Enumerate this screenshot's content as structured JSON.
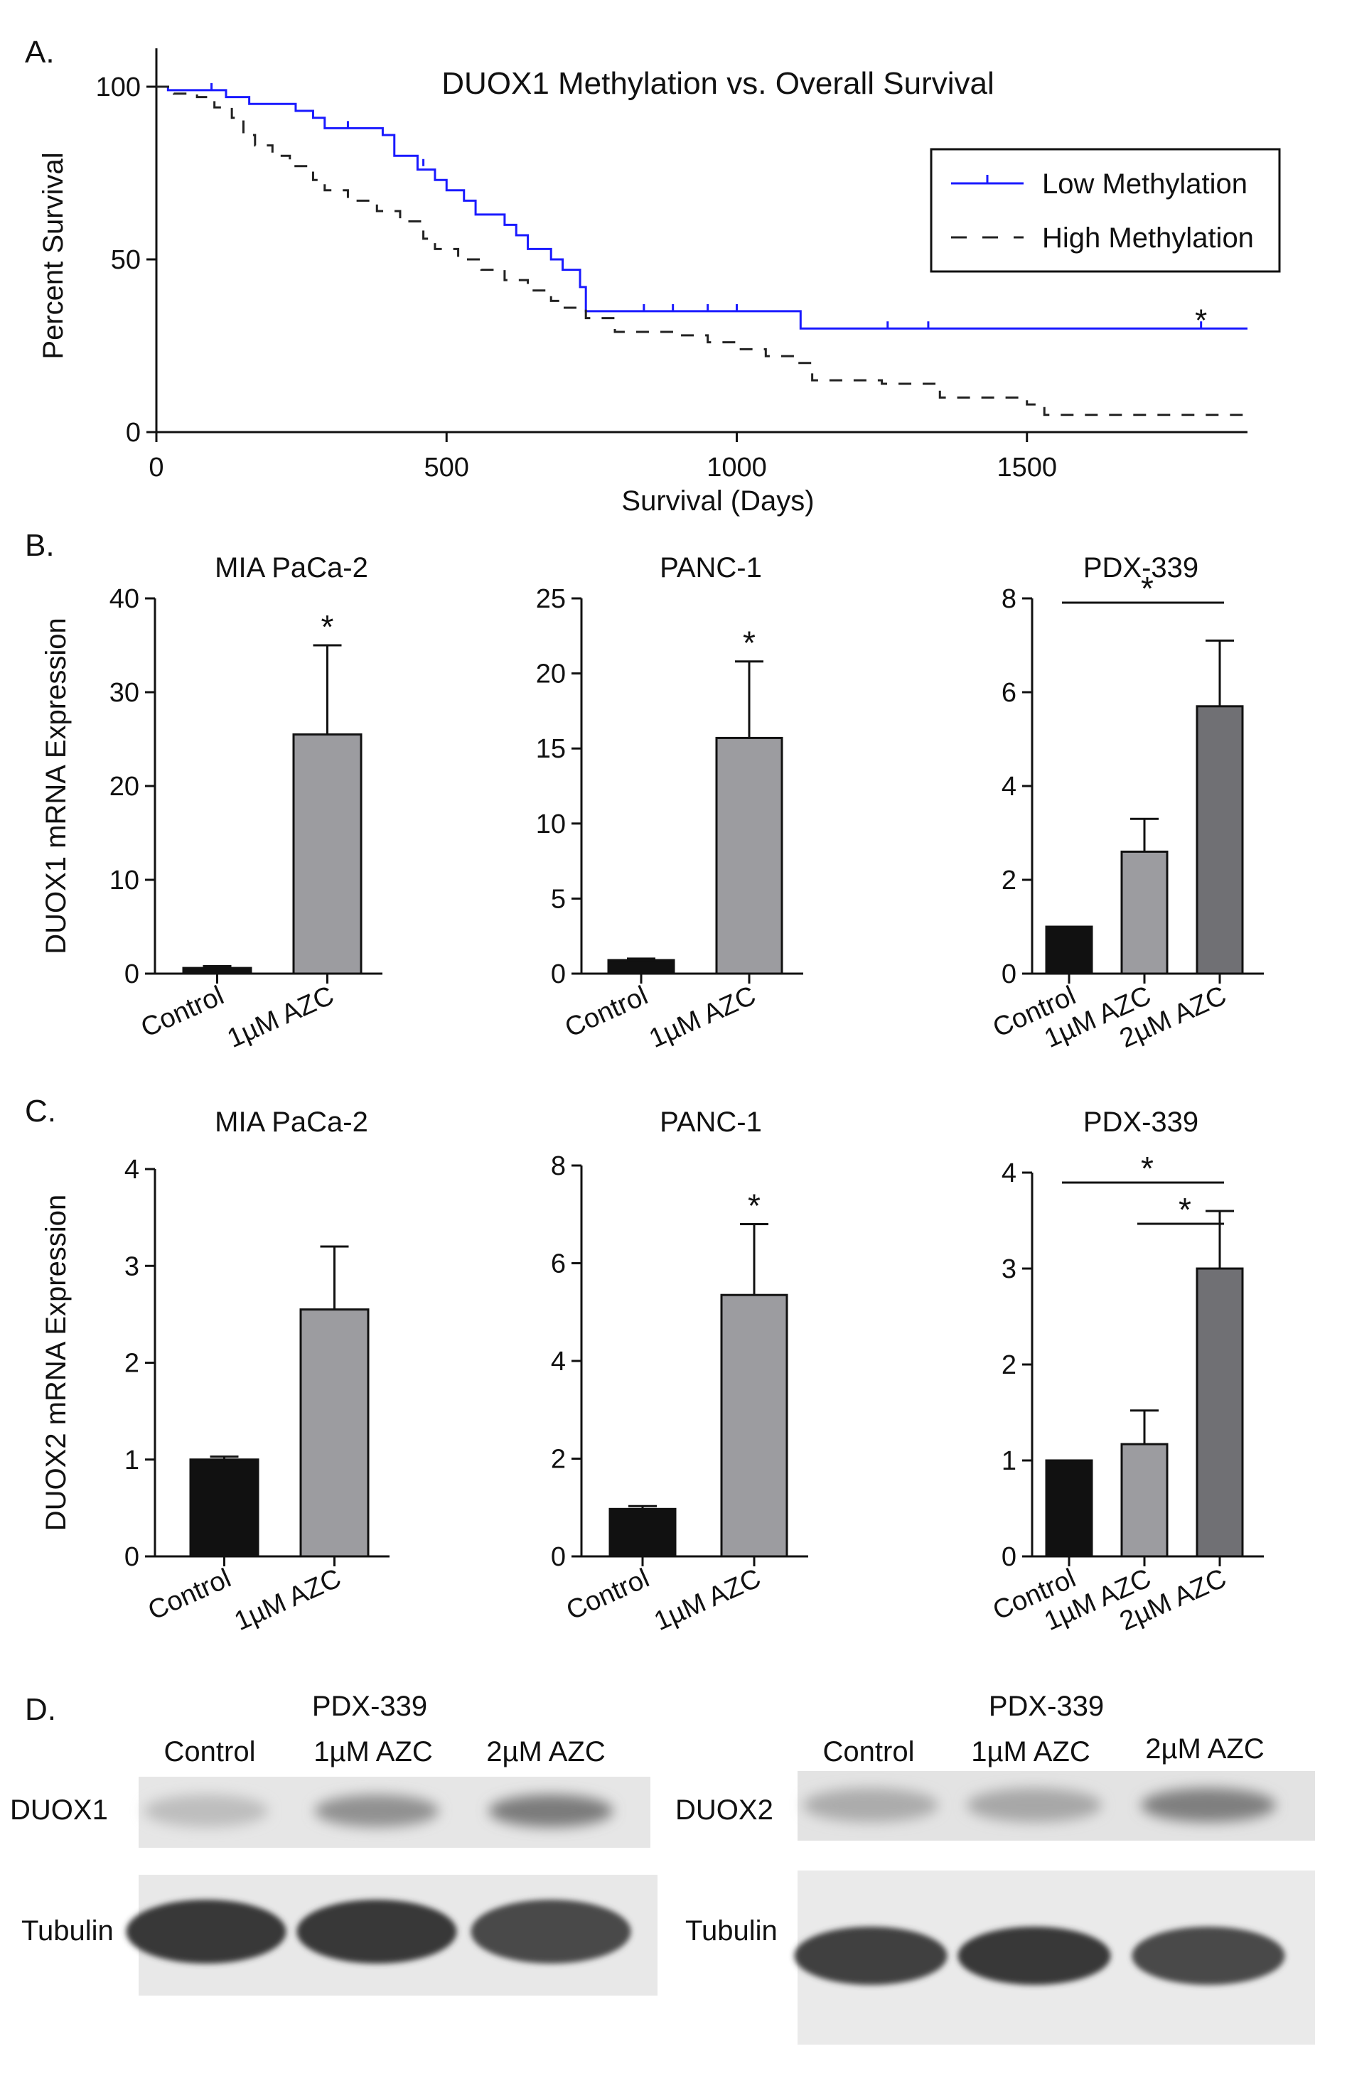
{
  "panels": {
    "A": {
      "letter": "A."
    },
    "B": {
      "letter": "B."
    },
    "C": {
      "letter": "C."
    },
    "D": {
      "letter": "D."
    }
  },
  "chart_data": [
    {
      "id": "A",
      "type": "line",
      "subtype": "kaplan-meier",
      "title": "DUOX1 Methylation vs. Overall Survival",
      "xlabel": "Survival (Days)",
      "ylabel": "Percent Survival",
      "xlim": [
        0,
        1880
      ],
      "ylim": [
        0,
        100
      ],
      "xticks": [
        0,
        500,
        1000,
        1500
      ],
      "yticks": [
        0,
        50,
        100
      ],
      "legend": {
        "position": "top-right",
        "entries": [
          "Low Methylation",
          "High Methylation"
        ]
      },
      "annotations": [
        {
          "text": "*",
          "x": 1800,
          "y": 33
        }
      ],
      "series": [
        {
          "name": "Low Methylation",
          "color": "#1a1aff",
          "style": "solid",
          "points": [
            [
              0,
              100
            ],
            [
              20,
              99
            ],
            [
              110,
              99
            ],
            [
              120,
              97
            ],
            [
              160,
              95
            ],
            [
              240,
              93
            ],
            [
              270,
              91
            ],
            [
              290,
              88
            ],
            [
              380,
              88
            ],
            [
              390,
              86
            ],
            [
              410,
              80
            ],
            [
              450,
              76
            ],
            [
              480,
              73
            ],
            [
              500,
              70
            ],
            [
              530,
              67
            ],
            [
              550,
              63
            ],
            [
              600,
              60
            ],
            [
              620,
              57
            ],
            [
              640,
              53
            ],
            [
              680,
              50
            ],
            [
              700,
              47
            ],
            [
              730,
              42
            ],
            [
              740,
              35
            ],
            [
              1100,
              35
            ],
            [
              1110,
              30
            ],
            [
              1880,
              30
            ]
          ],
          "censored": [
            [
              95,
              99
            ],
            [
              330,
              88
            ],
            [
              460,
              77
            ],
            [
              840,
              35
            ],
            [
              890,
              35
            ],
            [
              950,
              35
            ],
            [
              1000,
              35
            ],
            [
              1260,
              30
            ],
            [
              1330,
              30
            ],
            [
              1800,
              30
            ]
          ]
        },
        {
          "name": "High Methylation",
          "color": "#222222",
          "style": "dashed",
          "points": [
            [
              0,
              100
            ],
            [
              30,
              98
            ],
            [
              70,
              97
            ],
            [
              100,
              94
            ],
            [
              130,
              91
            ],
            [
              150,
              86
            ],
            [
              170,
              83
            ],
            [
              200,
              80
            ],
            [
              230,
              77
            ],
            [
              270,
              73
            ],
            [
              290,
              70
            ],
            [
              330,
              67
            ],
            [
              380,
              64
            ],
            [
              420,
              61
            ],
            [
              460,
              56
            ],
            [
              480,
              53
            ],
            [
              520,
              50
            ],
            [
              560,
              47
            ],
            [
              600,
              44
            ],
            [
              640,
              41
            ],
            [
              680,
              38
            ],
            [
              700,
              36
            ],
            [
              740,
              33
            ],
            [
              790,
              29
            ],
            [
              900,
              28
            ],
            [
              950,
              26
            ],
            [
              1000,
              24
            ],
            [
              1050,
              22
            ],
            [
              1100,
              20
            ],
            [
              1130,
              15
            ],
            [
              1250,
              14
            ],
            [
              1350,
              10
            ],
            [
              1500,
              8
            ],
            [
              1530,
              5
            ],
            [
              1880,
              5
            ]
          ],
          "censored": []
        }
      ]
    },
    {
      "id": "B1",
      "type": "bar",
      "title": "MIA PaCa-2",
      "ylabel": "DUOX1 mRNA Expression",
      "categories": [
        "Control",
        "1µM AZC"
      ],
      "values": [
        0.6,
        25.5
      ],
      "errors": [
        0.2,
        9.5
      ],
      "colors": [
        "#111111",
        "#9c9ca0"
      ],
      "ylim": [
        0,
        40
      ],
      "yticks": [
        0,
        10,
        20,
        30,
        40
      ],
      "significance": [
        {
          "label": "*",
          "target": 1
        }
      ]
    },
    {
      "id": "B2",
      "type": "bar",
      "title": "PANC-1",
      "ylabel": "",
      "categories": [
        "Control",
        "1µM AZC"
      ],
      "values": [
        0.9,
        15.7
      ],
      "errors": [
        0.1,
        5.1
      ],
      "colors": [
        "#111111",
        "#9c9ca0"
      ],
      "ylim": [
        0,
        25
      ],
      "yticks": [
        0,
        5,
        10,
        15,
        20,
        25
      ],
      "significance": [
        {
          "label": "*",
          "target": 1
        }
      ]
    },
    {
      "id": "B3",
      "type": "bar",
      "title": "PDX-339",
      "ylabel": "",
      "categories": [
        "Control",
        "1µM AZC",
        "2µM AZC"
      ],
      "values": [
        1.0,
        2.6,
        5.7
      ],
      "errors": [
        0.0,
        0.7,
        1.4
      ],
      "colors": [
        "#111111",
        "#9c9ca0",
        "#707074"
      ],
      "ylim": [
        0,
        8
      ],
      "yticks": [
        0,
        2,
        4,
        6,
        8
      ],
      "significance": [
        {
          "label": "*",
          "from": 0,
          "to": 2
        }
      ]
    },
    {
      "id": "C1",
      "type": "bar",
      "title": "MIA PaCa-2",
      "ylabel": "DUOX2 mRNA Expression",
      "categories": [
        "Control",
        "1µM AZC"
      ],
      "values": [
        1.0,
        2.55
      ],
      "errors": [
        0.03,
        0.65
      ],
      "colors": [
        "#111111",
        "#9c9ca0"
      ],
      "ylim": [
        0,
        4
      ],
      "yticks": [
        0,
        1,
        2,
        3,
        4
      ],
      "significance": []
    },
    {
      "id": "C2",
      "type": "bar",
      "title": "PANC-1",
      "ylabel": "",
      "categories": [
        "Control",
        "1µM AZC"
      ],
      "values": [
        0.97,
        5.35
      ],
      "errors": [
        0.06,
        1.45
      ],
      "colors": [
        "#111111",
        "#9c9ca0"
      ],
      "ylim": [
        0,
        8
      ],
      "yticks": [
        0,
        2,
        4,
        6,
        8
      ],
      "significance": [
        {
          "label": "*",
          "target": 1
        }
      ]
    },
    {
      "id": "C3",
      "type": "bar",
      "title": "PDX-339",
      "ylabel": "",
      "categories": [
        "Control",
        "1µM AZC",
        "2µM AZC"
      ],
      "values": [
        1.0,
        1.17,
        3.0
      ],
      "errors": [
        0.0,
        0.35,
        0.6
      ],
      "colors": [
        "#111111",
        "#9c9ca0",
        "#707074"
      ],
      "ylim": [
        0,
        4
      ],
      "yticks": [
        0,
        1,
        2,
        3,
        4
      ],
      "significance": [
        {
          "label": "*",
          "from": 0,
          "to": 2
        },
        {
          "label": "*",
          "from": 1,
          "to": 2
        }
      ]
    }
  ],
  "blots": [
    {
      "title": "PDX-339",
      "lanes": [
        "Control",
        "1µM AZC",
        "2µM AZC"
      ],
      "rows": [
        "DUOX1",
        "Tubulin"
      ],
      "intensity": {
        "DUOX1": [
          0.25,
          0.5,
          0.62
        ],
        "Tubulin": [
          1,
          1,
          0.9
        ]
      }
    },
    {
      "title": "PDX-339",
      "lanes": [
        "Control",
        "1µM AZC",
        "2µM AZC"
      ],
      "rows": [
        "DUOX2",
        "Tubulin"
      ],
      "intensity": {
        "DUOX2": [
          0.35,
          0.38,
          0.6
        ],
        "Tubulin": [
          0.95,
          1,
          0.9
        ]
      }
    }
  ]
}
